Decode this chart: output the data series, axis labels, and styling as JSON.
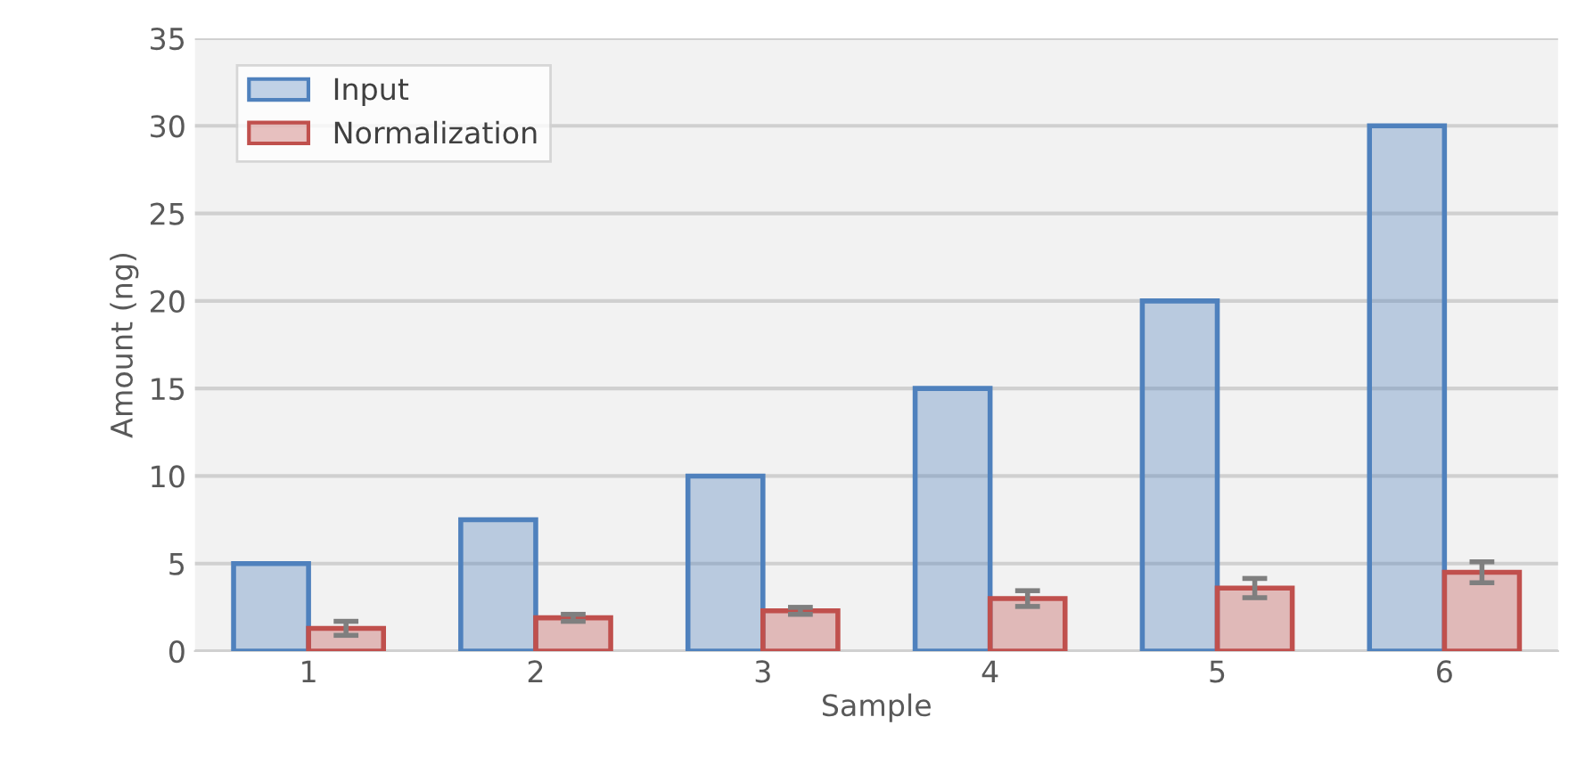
{
  "chart_data": {
    "type": "bar",
    "xlabel": "Sample",
    "ylabel": "Amount (ng)",
    "categories": [
      "1",
      "2",
      "3",
      "4",
      "5",
      "6"
    ],
    "series": [
      {
        "name": "Input",
        "color": "#4f81bd",
        "values": [
          5,
          7.5,
          10,
          15,
          20,
          30
        ]
      },
      {
        "name": "Normalization",
        "color": "#c0504d",
        "values": [
          1.3,
          1.9,
          2.3,
          3.0,
          3.6,
          4.5
        ],
        "errors": [
          0.4,
          0.2,
          0.2,
          0.45,
          0.55,
          0.6
        ]
      }
    ],
    "ylim": [
      0,
      35
    ],
    "yticks": [
      0,
      5,
      10,
      15,
      20,
      25,
      30,
      35
    ],
    "grid": "y",
    "legend": "top left"
  }
}
